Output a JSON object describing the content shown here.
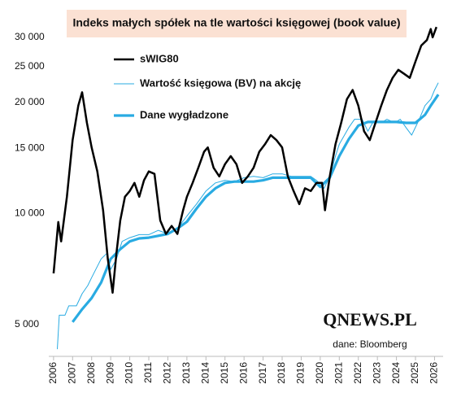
{
  "chart_data": {
    "type": "line",
    "title": "Indeks małych spółek na tle wartości księgowej (book value)",
    "logo": "QNEWS.PL",
    "source": "dane: Bloomberg",
    "log_scale": true,
    "ylim": [
      4100,
      36000
    ],
    "yticks": [
      {
        "value": 5000,
        "label": "5 000"
      },
      {
        "value": 10000,
        "label": "10 000"
      },
      {
        "value": 15000,
        "label": "15 000"
      },
      {
        "value": 20000,
        "label": "20 000"
      },
      {
        "value": 25000,
        "label": "25 000"
      },
      {
        "value": 30000,
        "label": "30 000"
      }
    ],
    "xlim": [
      2005.75,
      2026.45
    ],
    "xticks": [
      2006,
      2007,
      2008,
      2009,
      2010,
      2011,
      2012,
      2013,
      2014,
      2015,
      2016,
      2017,
      2018,
      2019,
      2020,
      2021,
      2022,
      2023,
      2024,
      2025,
      2026
    ],
    "series": [
      {
        "name": "sWIG80",
        "color": "#000000",
        "x": [
          2006.0,
          2006.25,
          2006.4,
          2006.7,
          2007.0,
          2007.3,
          2007.5,
          2007.75,
          2008.0,
          2008.3,
          2008.6,
          2008.85,
          2009.1,
          2009.3,
          2009.5,
          2009.75,
          2010.0,
          2010.25,
          2010.5,
          2010.75,
          2011.0,
          2011.3,
          2011.6,
          2011.9,
          2012.2,
          2012.5,
          2012.8,
          2013.0,
          2013.3,
          2013.6,
          2013.9,
          2014.1,
          2014.4,
          2014.7,
          2015.0,
          2015.3,
          2015.6,
          2015.9,
          2016.2,
          2016.5,
          2016.8,
          2017.1,
          2017.4,
          2017.7,
          2018.0,
          2018.3,
          2018.6,
          2018.9,
          2019.2,
          2019.5,
          2019.8,
          2020.1,
          2020.25,
          2020.5,
          2020.8,
          2021.1,
          2021.4,
          2021.7,
          2022.0,
          2022.3,
          2022.6,
          2022.9,
          2023.2,
          2023.5,
          2023.8,
          2024.1,
          2024.4,
          2024.7,
          2025.0,
          2025.3,
          2025.6,
          2025.8,
          2025.9,
          2026.1
        ],
        "values": [
          6880,
          9480,
          8400,
          11100,
          15800,
          19600,
          21300,
          17600,
          15100,
          13000,
          10200,
          7530,
          6100,
          7800,
          9570,
          11100,
          11500,
          12100,
          11100,
          12300,
          13000,
          12800,
          9570,
          8800,
          9250,
          8800,
          10200,
          11100,
          12100,
          13300,
          14700,
          15100,
          13300,
          12600,
          13600,
          14300,
          13600,
          12100,
          12600,
          13300,
          14700,
          15400,
          16300,
          15800,
          15100,
          12600,
          11500,
          10600,
          11700,
          11500,
          12100,
          12100,
          10200,
          12600,
          15400,
          17600,
          20400,
          21600,
          19600,
          16700,
          15800,
          17600,
          19600,
          21600,
          23300,
          24500,
          23900,
          23300,
          25800,
          28500,
          29500,
          31600,
          30000,
          32000
        ]
      },
      {
        "name": "Wartość księgowa (BV) na akcję",
        "color": "#29abe2",
        "x": [
          2006.2,
          2006.3,
          2006.6,
          2006.8,
          2007.2,
          2007.5,
          2007.8,
          2008.0,
          2008.5,
          2008.8,
          2009.0,
          2009.3,
          2009.6,
          2010.0,
          2010.5,
          2011.0,
          2011.5,
          2012.0,
          2012.5,
          2013.0,
          2013.5,
          2014.0,
          2014.5,
          2015.0,
          2015.5,
          2016.0,
          2016.5,
          2017.0,
          2017.5,
          2018.0,
          2018.5,
          2019.0,
          2019.5,
          2019.8,
          2020.2,
          2020.5,
          2020.8,
          2021.0,
          2021.5,
          2021.8,
          2022.2,
          2022.5,
          2022.8,
          2023.2,
          2023.5,
          2023.9,
          2024.2,
          2024.5,
          2024.8,
          2025.2,
          2025.5,
          2025.8,
          2026.0,
          2026.2
        ],
        "values": [
          4290,
          5300,
          5300,
          5620,
          5620,
          6060,
          6380,
          6700,
          7530,
          7800,
          7050,
          7530,
          8400,
          8600,
          8760,
          8760,
          9000,
          8800,
          9100,
          9840,
          10600,
          11500,
          12100,
          12300,
          12200,
          12500,
          12600,
          12500,
          12800,
          12800,
          12600,
          12600,
          12600,
          12300,
          11700,
          12600,
          14300,
          15400,
          17100,
          18000,
          18000,
          16700,
          17800,
          17600,
          18000,
          17600,
          18000,
          17100,
          16300,
          18000,
          19600,
          20400,
          21600,
          22600
        ]
      },
      {
        "name": "Dane wygładzone",
        "color": "#29abe2",
        "x": [
          2007.0,
          2007.5,
          2008.0,
          2008.5,
          2009.0,
          2009.5,
          2010.0,
          2010.5,
          2011.0,
          2011.5,
          2012.0,
          2012.5,
          2013.0,
          2013.5,
          2014.0,
          2014.5,
          2015.0,
          2015.5,
          2016.0,
          2016.5,
          2017.0,
          2017.5,
          2018.0,
          2018.5,
          2019.0,
          2019.5,
          2020.0,
          2020.5,
          2021.0,
          2021.5,
          2022.0,
          2022.5,
          2023.0,
          2023.5,
          2024.0,
          2024.5,
          2025.0,
          2025.5,
          2025.8,
          2026.2
        ],
        "values": [
          5080,
          5500,
          5900,
          6500,
          7530,
          8000,
          8400,
          8560,
          8600,
          8700,
          8800,
          9100,
          9500,
          10300,
          11100,
          11700,
          12100,
          12200,
          12200,
          12200,
          12300,
          12500,
          12500,
          12500,
          12500,
          12500,
          11800,
          12500,
          14300,
          15900,
          17300,
          17700,
          17700,
          17700,
          17700,
          17600,
          17600,
          18500,
          19600,
          21000
        ]
      }
    ]
  }
}
